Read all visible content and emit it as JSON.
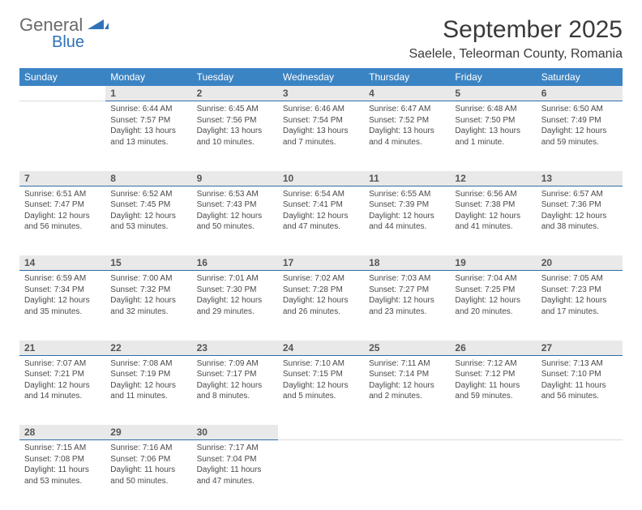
{
  "logo": {
    "word1": "General",
    "word2": "Blue"
  },
  "title": "September 2025",
  "location": "Saelele, Teleorman County, Romania",
  "colors": {
    "header_bg": "#3b84c4",
    "header_text": "#ffffff",
    "daynum_bg": "#e9e9e9",
    "daynum_border": "#2f6ea8",
    "body_text": "#4a4a4a",
    "title_text": "#3a3a3a",
    "logo_gray": "#6a6a6a",
    "logo_blue": "#2f72b8"
  },
  "weekdays": [
    "Sunday",
    "Monday",
    "Tuesday",
    "Wednesday",
    "Thursday",
    "Friday",
    "Saturday"
  ],
  "weeks": [
    [
      null,
      {
        "n": "1",
        "sr": "6:44 AM",
        "ss": "7:57 PM",
        "dl": "13 hours and 13 minutes."
      },
      {
        "n": "2",
        "sr": "6:45 AM",
        "ss": "7:56 PM",
        "dl": "13 hours and 10 minutes."
      },
      {
        "n": "3",
        "sr": "6:46 AM",
        "ss": "7:54 PM",
        "dl": "13 hours and 7 minutes."
      },
      {
        "n": "4",
        "sr": "6:47 AM",
        "ss": "7:52 PM",
        "dl": "13 hours and 4 minutes."
      },
      {
        "n": "5",
        "sr": "6:48 AM",
        "ss": "7:50 PM",
        "dl": "13 hours and 1 minute."
      },
      {
        "n": "6",
        "sr": "6:50 AM",
        "ss": "7:49 PM",
        "dl": "12 hours and 59 minutes."
      }
    ],
    [
      {
        "n": "7",
        "sr": "6:51 AM",
        "ss": "7:47 PM",
        "dl": "12 hours and 56 minutes."
      },
      {
        "n": "8",
        "sr": "6:52 AM",
        "ss": "7:45 PM",
        "dl": "12 hours and 53 minutes."
      },
      {
        "n": "9",
        "sr": "6:53 AM",
        "ss": "7:43 PM",
        "dl": "12 hours and 50 minutes."
      },
      {
        "n": "10",
        "sr": "6:54 AM",
        "ss": "7:41 PM",
        "dl": "12 hours and 47 minutes."
      },
      {
        "n": "11",
        "sr": "6:55 AM",
        "ss": "7:39 PM",
        "dl": "12 hours and 44 minutes."
      },
      {
        "n": "12",
        "sr": "6:56 AM",
        "ss": "7:38 PM",
        "dl": "12 hours and 41 minutes."
      },
      {
        "n": "13",
        "sr": "6:57 AM",
        "ss": "7:36 PM",
        "dl": "12 hours and 38 minutes."
      }
    ],
    [
      {
        "n": "14",
        "sr": "6:59 AM",
        "ss": "7:34 PM",
        "dl": "12 hours and 35 minutes."
      },
      {
        "n": "15",
        "sr": "7:00 AM",
        "ss": "7:32 PM",
        "dl": "12 hours and 32 minutes."
      },
      {
        "n": "16",
        "sr": "7:01 AM",
        "ss": "7:30 PM",
        "dl": "12 hours and 29 minutes."
      },
      {
        "n": "17",
        "sr": "7:02 AM",
        "ss": "7:28 PM",
        "dl": "12 hours and 26 minutes."
      },
      {
        "n": "18",
        "sr": "7:03 AM",
        "ss": "7:27 PM",
        "dl": "12 hours and 23 minutes."
      },
      {
        "n": "19",
        "sr": "7:04 AM",
        "ss": "7:25 PM",
        "dl": "12 hours and 20 minutes."
      },
      {
        "n": "20",
        "sr": "7:05 AM",
        "ss": "7:23 PM",
        "dl": "12 hours and 17 minutes."
      }
    ],
    [
      {
        "n": "21",
        "sr": "7:07 AM",
        "ss": "7:21 PM",
        "dl": "12 hours and 14 minutes."
      },
      {
        "n": "22",
        "sr": "7:08 AM",
        "ss": "7:19 PM",
        "dl": "12 hours and 11 minutes."
      },
      {
        "n": "23",
        "sr": "7:09 AM",
        "ss": "7:17 PM",
        "dl": "12 hours and 8 minutes."
      },
      {
        "n": "24",
        "sr": "7:10 AM",
        "ss": "7:15 PM",
        "dl": "12 hours and 5 minutes."
      },
      {
        "n": "25",
        "sr": "7:11 AM",
        "ss": "7:14 PM",
        "dl": "12 hours and 2 minutes."
      },
      {
        "n": "26",
        "sr": "7:12 AM",
        "ss": "7:12 PM",
        "dl": "11 hours and 59 minutes."
      },
      {
        "n": "27",
        "sr": "7:13 AM",
        "ss": "7:10 PM",
        "dl": "11 hours and 56 minutes."
      }
    ],
    [
      {
        "n": "28",
        "sr": "7:15 AM",
        "ss": "7:08 PM",
        "dl": "11 hours and 53 minutes."
      },
      {
        "n": "29",
        "sr": "7:16 AM",
        "ss": "7:06 PM",
        "dl": "11 hours and 50 minutes."
      },
      {
        "n": "30",
        "sr": "7:17 AM",
        "ss": "7:04 PM",
        "dl": "11 hours and 47 minutes."
      },
      null,
      null,
      null,
      null
    ]
  ],
  "labels": {
    "sunrise": "Sunrise:",
    "sunset": "Sunset:",
    "daylight": "Daylight:"
  }
}
